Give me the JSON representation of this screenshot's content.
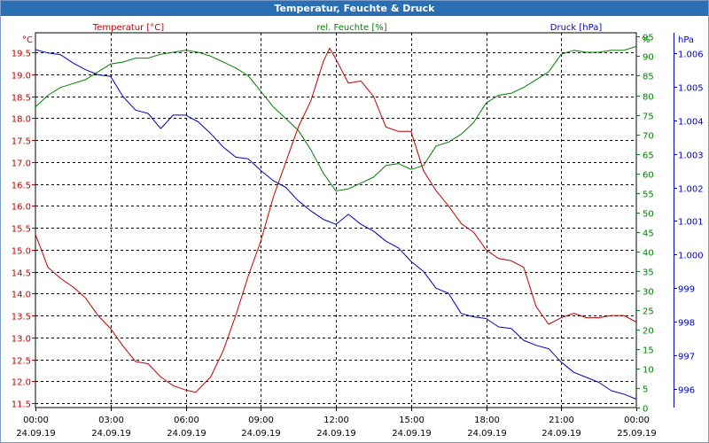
{
  "window": {
    "title": "Temperatur, Feuchte & Druck"
  },
  "chart_data": {
    "type": "line",
    "title": "Temperatur, Feuchte & Druck",
    "x_ticks": [
      {
        "time": "00:00",
        "date": "24.09.19"
      },
      {
        "time": "03:00",
        "date": "24.09.19"
      },
      {
        "time": "06:00",
        "date": "24.09.19"
      },
      {
        "time": "09:00",
        "date": "24.09.19"
      },
      {
        "time": "12:00",
        "date": "24.09.19"
      },
      {
        "time": "15:00",
        "date": "24.09.19"
      },
      {
        "time": "18:00",
        "date": "24.09.19"
      },
      {
        "time": "21:00",
        "date": "24.09.19"
      },
      {
        "time": "00:00",
        "date": "25.09.19"
      }
    ],
    "x_range_hours": [
      0,
      24
    ],
    "grid": true,
    "axes": {
      "temperature": {
        "label": "Temperatur [°C]",
        "unit": "°C",
        "position": "left",
        "color": "#c00000",
        "range": [
          11.4,
          19.95
        ],
        "ticks": [
          "11.5",
          "12.0",
          "12.5",
          "13.0",
          "13.5",
          "14.0",
          "14.5",
          "15.0",
          "15.5",
          "16.0",
          "16.5",
          "17.0",
          "17.5",
          "18.0",
          "18.5",
          "19.0",
          "19.5"
        ]
      },
      "humidity": {
        "label": "rel. Feuchte [%]",
        "unit": "%",
        "position": "right",
        "color": "#008000",
        "range": [
          0,
          96
        ],
        "ticks": [
          "0",
          "5",
          "10",
          "15",
          "20",
          "25",
          "30",
          "35",
          "40",
          "45",
          "50",
          "55",
          "60",
          "65",
          "70",
          "75",
          "80",
          "85",
          "90",
          "95"
        ]
      },
      "pressure": {
        "label": "Druck [hPa]",
        "unit": "hPa",
        "position": "far-right",
        "color": "#0000c0",
        "range": [
          995.45,
          1006.6
        ],
        "ticks": [
          "996",
          "997",
          "998",
          "999",
          "1.000",
          "1.001",
          "1.002",
          "1.003",
          "1.004",
          "1.005",
          "1.006"
        ]
      }
    },
    "series": [
      {
        "name": "Temperatur [°C]",
        "axis": "temperature",
        "color": "#c00000",
        "x": [
          0,
          0.5,
          1.0,
          1.5,
          2.0,
          2.5,
          3.0,
          3.5,
          4.0,
          4.5,
          5.0,
          5.5,
          6.0,
          6.4,
          7.0,
          7.5,
          8.0,
          8.5,
          9.0,
          9.5,
          10.0,
          10.5,
          11.0,
          11.5,
          11.75,
          12.0,
          12.5,
          13.0,
          13.5,
          14.0,
          14.5,
          15.0,
          15.5,
          16.0,
          16.5,
          17.0,
          17.5,
          18.0,
          18.5,
          19.0,
          19.5,
          20.0,
          20.5,
          21.0,
          21.5,
          22.0,
          22.5,
          23.0,
          23.5,
          24.0
        ],
        "y": [
          15.35,
          14.6,
          14.35,
          14.15,
          13.9,
          13.5,
          13.2,
          12.8,
          12.45,
          12.4,
          12.1,
          11.9,
          11.8,
          11.75,
          12.1,
          12.7,
          13.5,
          14.4,
          15.2,
          16.2,
          17.0,
          17.8,
          18.4,
          19.3,
          19.6,
          19.35,
          18.8,
          18.85,
          18.5,
          17.8,
          17.7,
          17.7,
          16.8,
          16.35,
          16.0,
          15.6,
          15.4,
          15.0,
          14.8,
          14.75,
          14.6,
          13.7,
          13.3,
          13.45,
          13.55,
          13.45,
          13.45,
          13.5,
          13.5,
          13.35
        ]
      },
      {
        "name": "rel. Feuchte [%]",
        "axis": "humidity",
        "color": "#008000",
        "x": [
          0,
          0.5,
          1.0,
          1.5,
          2.0,
          2.5,
          3.0,
          3.5,
          4.0,
          4.5,
          5.0,
          5.5,
          6.0,
          6.5,
          7.0,
          7.5,
          8.0,
          8.5,
          9.0,
          9.5,
          10.0,
          10.5,
          11.0,
          11.5,
          12.0,
          12.5,
          13.0,
          13.5,
          14.0,
          14.5,
          15.0,
          15.5,
          16.0,
          16.5,
          17.0,
          17.5,
          18.0,
          18.5,
          19.0,
          19.5,
          20.0,
          20.5,
          21.0,
          21.5,
          22.0,
          22.5,
          23.0,
          23.5,
          24.0
        ],
        "y": [
          77,
          80,
          82,
          83,
          84,
          86,
          88,
          88.5,
          89.5,
          89.5,
          90.5,
          91,
          91.5,
          91,
          90,
          88.5,
          87,
          85,
          81,
          77,
          74,
          71,
          66,
          60,
          55.5,
          56,
          57.5,
          59,
          62,
          62.5,
          61,
          62,
          67,
          68,
          70,
          73,
          78,
          80,
          80.5,
          82,
          84,
          86,
          90.5,
          91.5,
          91,
          91,
          91.5,
          91.5,
          92.5
        ]
      },
      {
        "name": "Druck [hPa]",
        "axis": "pressure",
        "color": "#0000c0",
        "x": [
          0,
          0.5,
          1.0,
          1.5,
          2.0,
          2.5,
          3.0,
          3.5,
          4.0,
          4.5,
          5.0,
          5.5,
          6.0,
          6.5,
          7.0,
          7.5,
          8.0,
          8.5,
          9.0,
          9.5,
          10.0,
          10.5,
          11.0,
          11.5,
          12.0,
          12.5,
          13.0,
          13.5,
          14.0,
          14.5,
          15.0,
          15.5,
          16.0,
          16.5,
          17.0,
          17.5,
          18.0,
          18.5,
          19.0,
          19.5,
          20.0,
          20.5,
          21.0,
          21.5,
          22.0,
          22.5,
          23.0,
          23.5,
          24.0
        ],
        "y": [
          1006.1,
          1006.0,
          1005.95,
          1005.7,
          1005.5,
          1005.35,
          1005.3,
          1004.7,
          1004.3,
          1004.2,
          1003.75,
          1004.15,
          1004.15,
          1003.95,
          1003.6,
          1003.2,
          1002.9,
          1002.85,
          1002.5,
          1002.2,
          1002.0,
          1001.6,
          1001.3,
          1001.05,
          1000.9,
          1001.2,
          1000.9,
          1000.7,
          1000.4,
          1000.2,
          999.8,
          999.5,
          999.0,
          998.85,
          998.25,
          998.15,
          998.1,
          997.85,
          997.8,
          997.45,
          997.3,
          997.2,
          996.8,
          996.5,
          996.35,
          996.2,
          995.95,
          995.85,
          995.7
        ]
      }
    ]
  }
}
